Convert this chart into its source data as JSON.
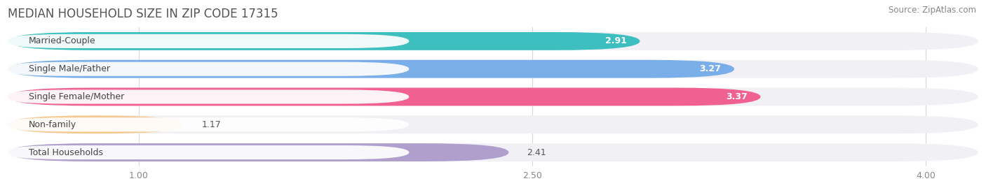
{
  "title": "MEDIAN HOUSEHOLD SIZE IN ZIP CODE 17315",
  "source": "Source: ZipAtlas.com",
  "categories": [
    "Married-Couple",
    "Single Male/Father",
    "Single Female/Mother",
    "Non-family",
    "Total Households"
  ],
  "values": [
    2.91,
    3.27,
    3.37,
    1.17,
    2.41
  ],
  "bar_colors": [
    "#3dbfbf",
    "#7aaee8",
    "#f06090",
    "#f5c990",
    "#b09fcc"
  ],
  "value_colors": [
    "white",
    "white",
    "white",
    "#666666",
    "#666666"
  ],
  "xlim_left": 0.5,
  "xlim_right": 4.2,
  "xticks": [
    1.0,
    2.5,
    4.0
  ],
  "bar_height": 0.65,
  "bar_gap": 0.35,
  "title_fontsize": 12,
  "source_fontsize": 8.5,
  "label_fontsize": 9,
  "value_fontsize": 9,
  "tick_fontsize": 9,
  "background_color": "#ffffff",
  "bar_bg_color": "#f0f0f5"
}
